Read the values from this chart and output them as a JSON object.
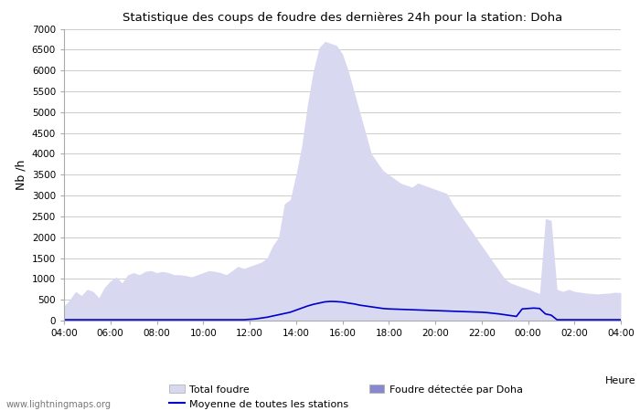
{
  "title": "Statistique des coups de foudre des dernières 24h pour la station: Doha",
  "xlabel": "Heure",
  "ylabel": "Nb /h",
  "watermark": "www.lightningmaps.org",
  "ylim": [
    0,
    7000
  ],
  "yticks": [
    0,
    500,
    1000,
    1500,
    2000,
    2500,
    3000,
    3500,
    4000,
    4500,
    5000,
    5500,
    6000,
    6500,
    7000
  ],
  "x_labels": [
    "04:00",
    "06:00",
    "08:00",
    "10:00",
    "12:00",
    "14:00",
    "16:00",
    "18:00",
    "20:00",
    "22:00",
    "00:00",
    "02:00",
    "04:00"
  ],
  "color_total": "#d8d8f0",
  "color_doha": "#8888cc",
  "color_moyenne": "#0000cc",
  "background_color": "#ffffff",
  "grid_color": "#cccccc",
  "n_points": 97,
  "total_foudre": [
    350,
    500,
    700,
    600,
    750,
    700,
    550,
    800,
    950,
    1050,
    900,
    1100,
    1150,
    1100,
    1180,
    1200,
    1150,
    1180,
    1150,
    1100,
    1100,
    1080,
    1050,
    1100,
    1150,
    1200,
    1180,
    1150,
    1100,
    1200,
    1300,
    1250,
    1300,
    1350,
    1400,
    1500,
    1800,
    2000,
    2800,
    2900,
    3500,
    4200,
    5200,
    6000,
    6550,
    6700,
    6650,
    6600,
    6400,
    6000,
    5500,
    5000,
    4500,
    4000,
    3800,
    3600,
    3500,
    3400,
    3300,
    3250,
    3200,
    3300,
    3250,
    3200,
    3150,
    3100,
    3050,
    2800,
    2600,
    2400,
    2200,
    2000,
    1800,
    1600,
    1400,
    1200,
    1000,
    900,
    850,
    800,
    750,
    700,
    650,
    2450,
    2400,
    750,
    700,
    750,
    700,
    680,
    660,
    650,
    640,
    650,
    660,
    680,
    670
  ],
  "doha_foudre": [
    0,
    0,
    0,
    0,
    0,
    0,
    0,
    0,
    0,
    0,
    0,
    0,
    0,
    0,
    0,
    0,
    0,
    0,
    0,
    0,
    0,
    0,
    0,
    0,
    0,
    0,
    0,
    0,
    0,
    0,
    0,
    0,
    0,
    0,
    0,
    0,
    0,
    0,
    0,
    0,
    0,
    0,
    0,
    0,
    0,
    0,
    0,
    0,
    0,
    0,
    0,
    0,
    0,
    0,
    0,
    0,
    0,
    0,
    0,
    0,
    0,
    0,
    0,
    0,
    0,
    0,
    0,
    0,
    0,
    0,
    0,
    0,
    0,
    0,
    0,
    0,
    0,
    0,
    0,
    0,
    0,
    0,
    0,
    0,
    0,
    0,
    0,
    0,
    0,
    0,
    0,
    0,
    0,
    0,
    0,
    0,
    0
  ],
  "moyenne": [
    20,
    20,
    20,
    20,
    20,
    20,
    20,
    20,
    20,
    20,
    20,
    20,
    20,
    20,
    20,
    20,
    20,
    20,
    20,
    20,
    20,
    20,
    20,
    20,
    20,
    20,
    20,
    20,
    20,
    20,
    20,
    20,
    30,
    40,
    60,
    80,
    110,
    140,
    170,
    200,
    250,
    300,
    350,
    390,
    420,
    450,
    460,
    455,
    445,
    420,
    400,
    370,
    350,
    330,
    310,
    290,
    280,
    275,
    270,
    265,
    260,
    255,
    250,
    245,
    240,
    235,
    230,
    225,
    220,
    215,
    210,
    205,
    200,
    190,
    175,
    160,
    140,
    120,
    100,
    280,
    290,
    300,
    290,
    160,
    130,
    20,
    20,
    20,
    20,
    20,
    20,
    20,
    20,
    20,
    20,
    20,
    20
  ]
}
